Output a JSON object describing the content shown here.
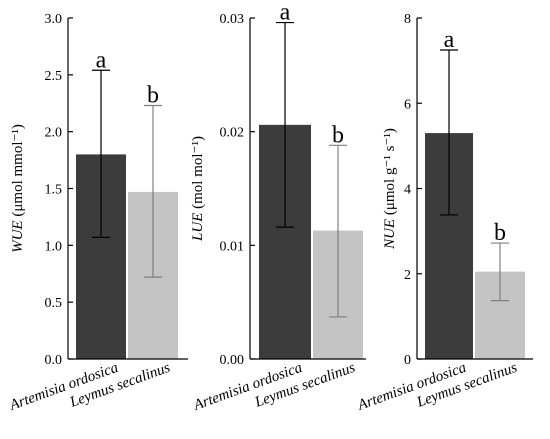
{
  "colors": {
    "dark_bar": "#3c3c3c",
    "light_bar": "#c4c4c4",
    "dark_err": "#000000",
    "light_err": "#7f7f7f"
  },
  "chart_data": [
    {
      "type": "bar",
      "categories": [
        "Artemisia ordosica",
        "Leymus secalinus"
      ],
      "values": [
        1.8,
        1.47
      ],
      "error_high": [
        2.54,
        2.23
      ],
      "error_low": [
        1.07,
        0.72
      ],
      "letters": [
        "a",
        "b"
      ],
      "ylabel_italic": "WUE",
      "ylabel_unit": " (μmol mmol⁻¹)",
      "ylim": [
        0,
        3.0
      ],
      "yticks": [
        "0.0",
        "0.5",
        "1.0",
        "1.5",
        "2.0",
        "2.5",
        "3.0"
      ],
      "grid": false
    },
    {
      "type": "bar",
      "categories": [
        "Artemisia ordosica",
        "Leymus secalinus"
      ],
      "values": [
        0.0206,
        0.0113
      ],
      "error_high": [
        0.0296,
        0.0188
      ],
      "error_low": [
        0.0116,
        0.0037
      ],
      "letters": [
        "a",
        "b"
      ],
      "ylabel_italic": "LUE",
      "ylabel_unit": " (mol mol⁻¹)",
      "ylim": [
        0,
        0.03
      ],
      "yticks": [
        "0.00",
        "0.01",
        "0.02",
        "0.03"
      ],
      "grid": false
    },
    {
      "type": "bar",
      "categories": [
        "Artemisia ordosica",
        "Leymus secalinus"
      ],
      "values": [
        5.3,
        2.05
      ],
      "error_high": [
        7.25,
        2.72
      ],
      "error_low": [
        3.38,
        1.37
      ],
      "letters": [
        "a",
        "b"
      ],
      "ylabel_italic": "NUE",
      "ylabel_unit": " (μmol g⁻¹ s⁻¹)",
      "ylim": [
        0,
        8
      ],
      "yticks": [
        "0",
        "2",
        "4",
        "6",
        "8"
      ],
      "grid": false
    }
  ]
}
